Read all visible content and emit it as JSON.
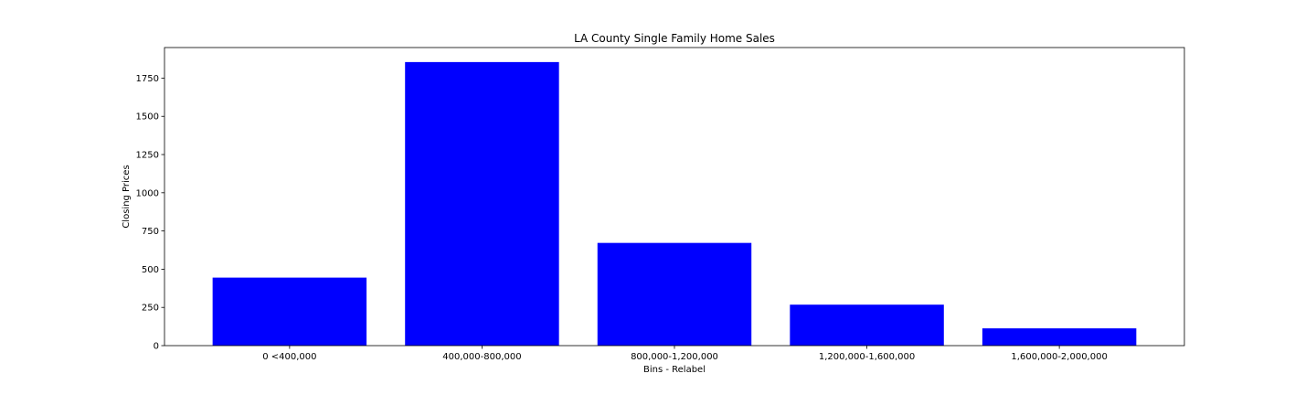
{
  "chart_data": {
    "type": "bar",
    "title": "LA County Single Family Home Sales",
    "xlabel": "Bins - Relabel",
    "ylabel": "Closing Prices",
    "categories": [
      "0 <400,000",
      "400,000-800,000",
      "800,000-1,200,000",
      "1,200,000-1,600,000",
      "1,600,000-2,000,000"
    ],
    "values": [
      445,
      1855,
      672,
      268,
      113
    ],
    "ylim": [
      0,
      1950
    ],
    "yticks": [
      0,
      250,
      500,
      750,
      1000,
      1250,
      1500,
      1750
    ],
    "bar_color": "#0000ff",
    "grid": false,
    "legend": "none"
  }
}
